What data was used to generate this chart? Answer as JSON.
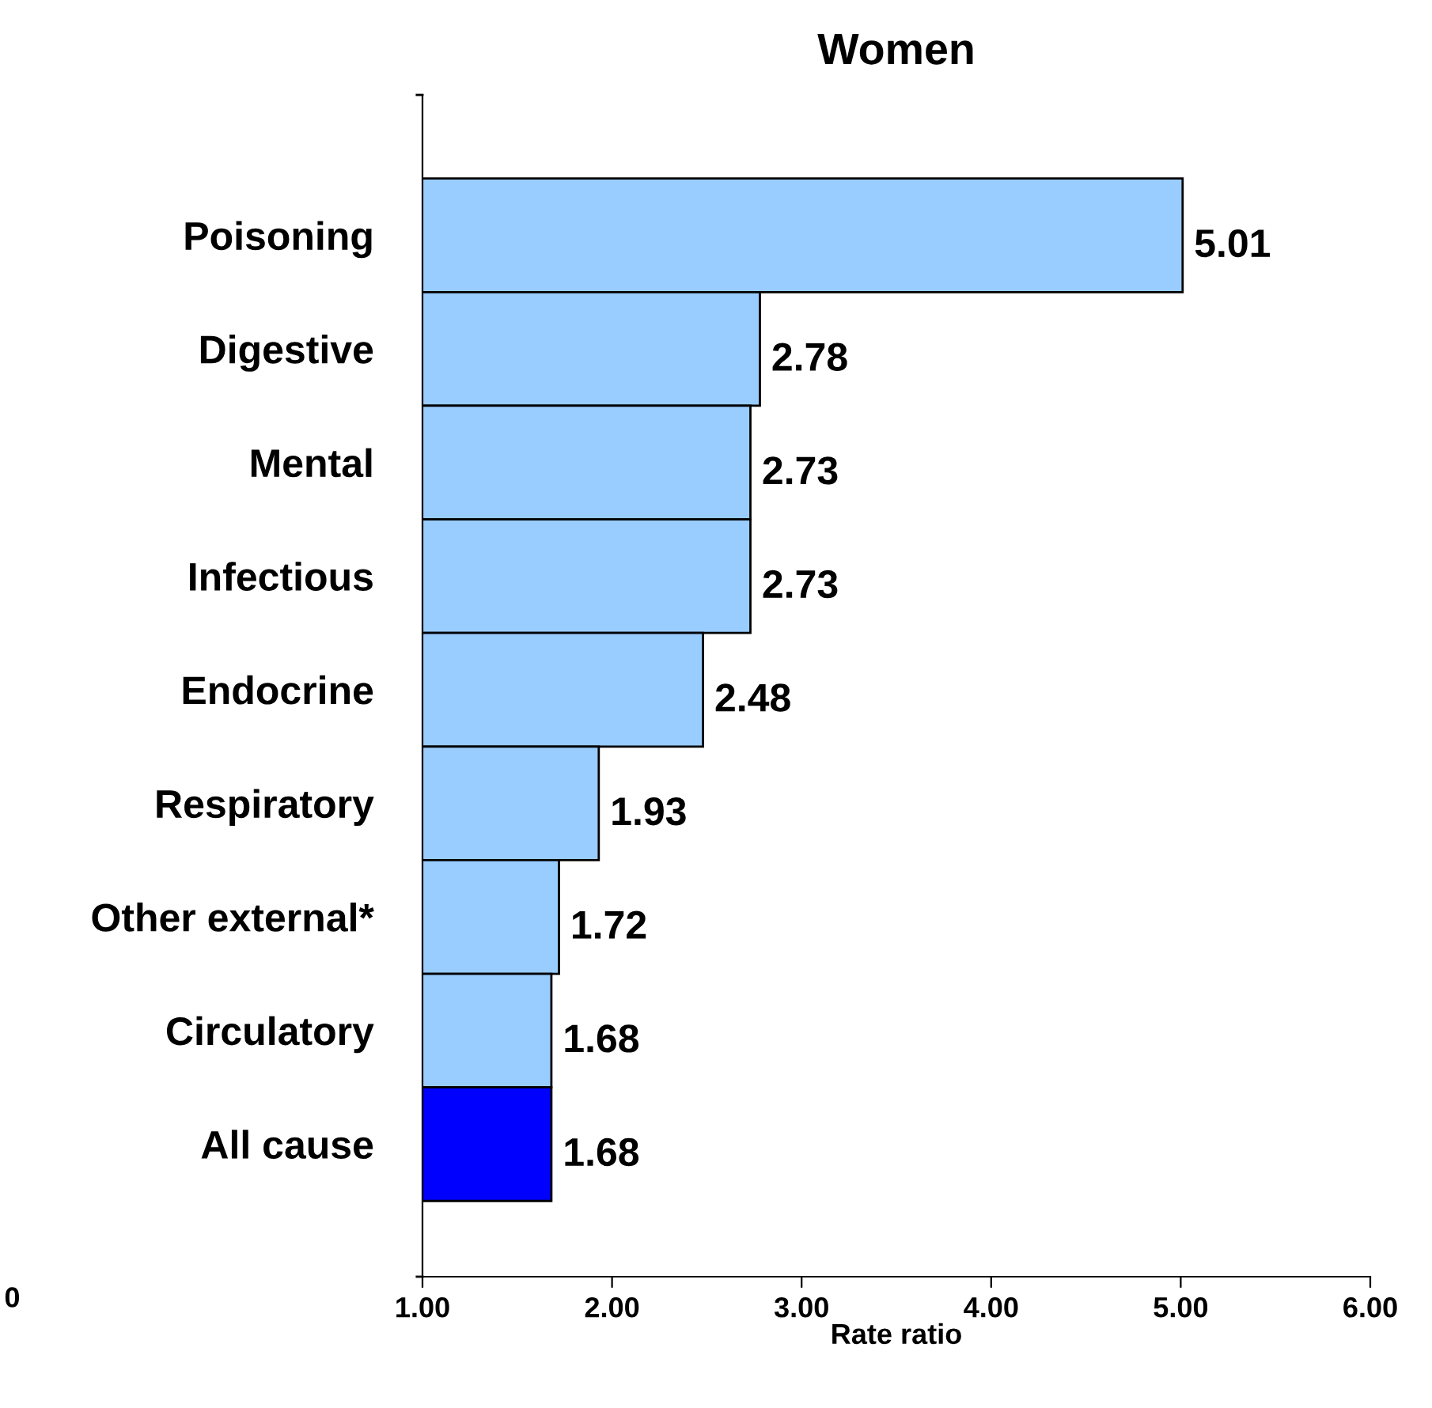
{
  "chart_data": {
    "type": "bar",
    "orientation": "horizontal",
    "title": "Women",
    "xlabel": "Rate ratio",
    "categories": [
      "Poisoning",
      "Digestive",
      "Mental",
      "Infectious",
      "Endocrine",
      "Respiratory",
      "Other external*",
      "Circulatory",
      "All cause"
    ],
    "values": [
      5.01,
      2.78,
      2.73,
      2.73,
      2.48,
      1.93,
      1.72,
      1.68,
      1.68
    ],
    "colors": [
      "#99ccff",
      "#99ccff",
      "#99ccff",
      "#99ccff",
      "#99ccff",
      "#99ccff",
      "#99ccff",
      "#99ccff",
      "#0000ff"
    ],
    "value_labels": [
      "5.01",
      "2.78",
      "2.73",
      "2.73",
      "2.48",
      "1.93",
      "1.72",
      "1.68",
      "1.68"
    ],
    "xlim": [
      1,
      6
    ],
    "xticks": [
      {
        "value": 1,
        "label": "1.00"
      },
      {
        "value": 2,
        "label": "2.00"
      },
      {
        "value": 3,
        "label": "3.00"
      },
      {
        "value": 4,
        "label": "4.00"
      },
      {
        "value": 5,
        "label": "5.00"
      },
      {
        "value": 6,
        "label": "6.00"
      }
    ],
    "annotations": [
      "0"
    ],
    "grid": false,
    "legend": false
  }
}
